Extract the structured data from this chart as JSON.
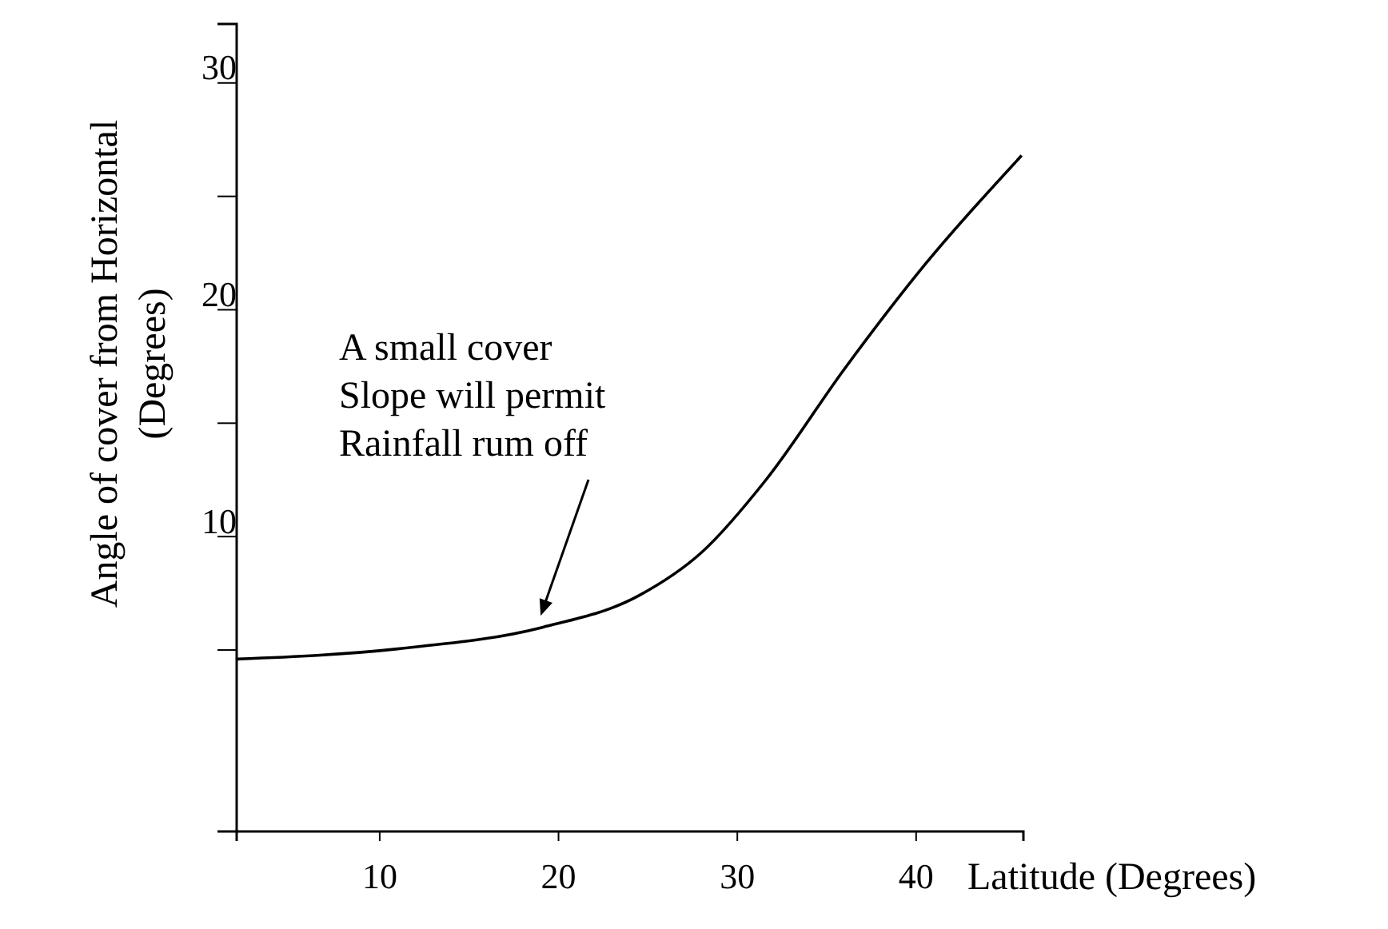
{
  "chart_data": {
    "type": "line",
    "xlabel": "Latitude (Degrees)",
    "ylabel": "Angle of cover from Horizontal\n(Degrees)",
    "x": [
      2,
      11,
      19.1,
      24.5,
      28,
      31.6,
      36,
      40.5,
      45.9
    ],
    "series": [
      {
        "color": "#000000",
        "values": [
          4.6,
          5.05,
          6.0,
          7.4,
          9.3,
          12.5,
          17.4,
          22,
          26.8
        ]
      }
    ],
    "xlim": [
      2,
      46
    ],
    "ylim": [
      -3,
      32.6
    ],
    "xticks": [
      10,
      20,
      30,
      40
    ],
    "yticks": [
      {
        "value": 5,
        "label": null
      },
      10,
      {
        "value": 15,
        "label": null
      },
      20,
      {
        "value": 25,
        "label": null
      },
      30
    ],
    "annotations": [
      {
        "text": "A small cover\nSlope will permit\nRainfall rum off",
        "x": 19,
        "y": 6.3
      }
    ],
    "grid": false,
    "marker": "none",
    "line_style": "solid"
  }
}
